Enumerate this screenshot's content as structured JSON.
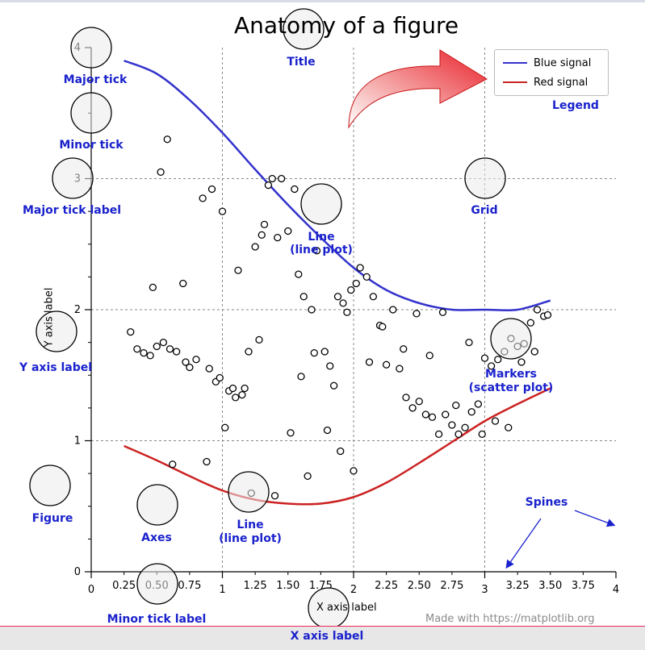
{
  "chart_data": {
    "type": "line",
    "title": "Anatomy of a figure",
    "xlabel": "X axis label",
    "ylabel": "Y axis label",
    "xlim": [
      0,
      4
    ],
    "ylim": [
      0,
      4
    ],
    "x_major_ticks": [
      "0",
      "1",
      "2",
      "3",
      "4"
    ],
    "x_minor_ticks": [
      "0.25",
      "0.50",
      "0.75",
      "1.25",
      "1.50",
      "1.75",
      "2.25",
      "2.50",
      "2.75",
      "3.25",
      "3.50",
      "3.75"
    ],
    "y_major_ticks": [
      "0",
      "1",
      "2",
      "3",
      "4"
    ],
    "grid": true,
    "legend_position": "top-right",
    "series": [
      {
        "name": "Blue signal",
        "kind": "line",
        "color": "#3333cc",
        "x": [
          0.25,
          0.5,
          0.75,
          1.0,
          1.25,
          1.5,
          1.75,
          2.0,
          2.25,
          2.5,
          2.75,
          3.0,
          3.25,
          3.5
        ],
        "y": [
          3.9,
          3.8,
          3.6,
          3.35,
          3.07,
          2.8,
          2.55,
          2.32,
          2.15,
          2.05,
          2.0,
          2.0,
          2.0,
          2.07
        ]
      },
      {
        "name": "Red signal",
        "kind": "line",
        "color": "#cc2222",
        "x": [
          0.25,
          0.5,
          0.75,
          1.0,
          1.25,
          1.5,
          1.75,
          2.0,
          2.25,
          2.5,
          2.75,
          3.0,
          3.25,
          3.5
        ],
        "y": [
          0.96,
          0.85,
          0.73,
          0.62,
          0.55,
          0.52,
          0.52,
          0.57,
          0.68,
          0.83,
          0.99,
          1.15,
          1.28,
          1.4
        ]
      },
      {
        "kind": "scatter",
        "x": [
          0.35,
          0.5,
          0.55,
          0.6,
          0.65,
          0.72,
          0.75,
          0.8,
          0.9,
          0.95,
          0.98,
          1.05,
          1.1,
          0.3,
          0.4,
          0.47,
          0.53,
          0.58,
          0.7,
          0.85,
          0.92,
          1.0,
          1.12,
          1.17,
          1.25,
          1.3,
          1.32,
          1.35,
          1.38,
          1.42,
          1.45,
          1.5,
          1.55,
          1.58,
          1.62,
          1.68,
          1.72,
          1.78,
          1.82,
          1.88,
          1.92,
          1.95,
          1.98,
          2.02,
          2.05,
          2.1,
          2.15,
          2.2,
          2.25,
          2.3,
          2.35,
          2.4,
          2.45,
          2.5,
          2.55,
          2.6,
          2.65,
          2.7,
          2.75,
          2.8,
          2.85,
          2.9,
          2.95,
          3.0,
          3.05,
          3.1,
          3.15,
          3.2,
          3.25,
          3.3,
          3.35,
          3.4,
          3.45,
          3.48,
          1.15,
          1.2,
          1.28,
          1.6,
          1.7,
          1.85,
          2.12,
          2.22,
          2.38,
          2.48,
          2.58,
          2.68,
          2.78,
          2.88,
          2.98,
          3.08,
          3.18,
          3.28,
          3.38,
          0.45,
          0.62,
          0.88,
          1.02,
          1.08,
          1.22,
          1.4,
          1.52,
          1.65,
          1.8,
          1.9,
          2.0
        ],
        "y": [
          1.7,
          1.72,
          1.75,
          1.7,
          1.68,
          1.6,
          1.56,
          1.62,
          1.55,
          1.45,
          1.48,
          1.38,
          1.33,
          1.83,
          1.67,
          2.17,
          3.05,
          3.3,
          2.2,
          2.85,
          2.92,
          2.75,
          2.3,
          1.4,
          2.48,
          2.57,
          2.65,
          2.95,
          3.0,
          2.55,
          3.0,
          2.6,
          2.92,
          2.27,
          2.1,
          2.0,
          2.45,
          1.68,
          1.57,
          2.1,
          2.05,
          1.98,
          2.15,
          2.2,
          2.32,
          2.25,
          2.1,
          1.88,
          1.58,
          2.0,
          1.55,
          1.33,
          1.25,
          1.3,
          1.2,
          1.18,
          1.05,
          1.2,
          1.12,
          1.05,
          1.1,
          1.22,
          1.28,
          1.63,
          1.57,
          1.62,
          1.68,
          1.78,
          1.72,
          1.74,
          1.9,
          2.0,
          1.95,
          1.96,
          1.35,
          1.68,
          1.77,
          1.49,
          1.67,
          1.42,
          1.6,
          1.87,
          1.7,
          1.97,
          1.65,
          1.98,
          1.27,
          1.75,
          1.05,
          1.15,
          1.1,
          1.6,
          1.68,
          1.65,
          0.82,
          0.84,
          1.1,
          1.4,
          0.6,
          0.58,
          1.06,
          0.73,
          1.08,
          0.92,
          0.77
        ]
      }
    ]
  },
  "annotations": {
    "title": "Title",
    "legend": "Legend",
    "major_tick": "Major tick",
    "minor_tick": "Minor tick",
    "major_tick_label": "Major tick label",
    "grid": "Grid",
    "line_plot_1a": "Line",
    "line_plot_1b": "(line plot)",
    "y_axis_label": "Y axis label",
    "markers_a": "Markers",
    "markers_b": "(scatter plot)",
    "figure": "Figure",
    "axes": "Axes",
    "line_plot_2a": "Line",
    "line_plot_2b": "(line plot)",
    "spines": "Spines",
    "minor_tick_label": "Minor tick label",
    "x_axis_label": "X axis label"
  },
  "credit": "Made with https://matplotlib.org",
  "colors": {
    "annotation": "#1a22cc",
    "blue_line": "#3333cc",
    "red_line": "#cc2222",
    "highlight_arrow": "#e8212a",
    "bottom_bar": "#e8285a"
  }
}
